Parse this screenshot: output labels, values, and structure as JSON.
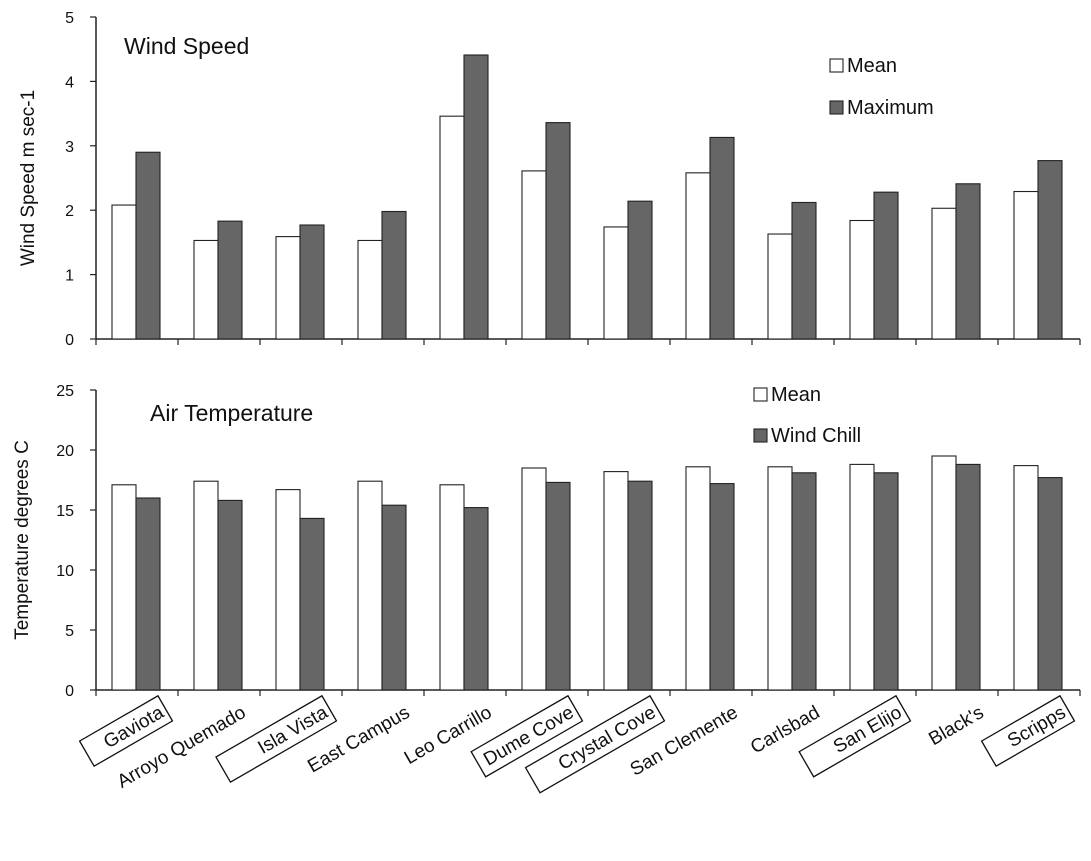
{
  "sites": [
    "Gaviota",
    "Arroyo Quemado",
    "Isla Vista",
    "East Campus",
    "Leo Carrillo",
    "Dume Cove",
    "Crystal Cove",
    "San Clemente",
    "Carlsbad",
    "San Elijo",
    "Black's",
    "Scripps"
  ],
  "boxed_sites": [
    true,
    false,
    true,
    false,
    false,
    true,
    true,
    false,
    false,
    true,
    false,
    true
  ],
  "colors": {
    "mean": "#ffffff",
    "secondary": "#666666",
    "axis": "#222222"
  },
  "chart_data": [
    {
      "type": "bar",
      "title": "Wind Speed",
      "ylabel": "Wind Speed m sec-1",
      "ylim": [
        0,
        5
      ],
      "yticks": [
        0,
        1,
        2,
        3,
        4,
        5
      ],
      "legend_position": "top-right",
      "categories_ref": "sites",
      "series": [
        {
          "name": "Mean",
          "color": "#ffffff",
          "values": [
            2.08,
            1.53,
            1.59,
            1.53,
            3.46,
            2.61,
            1.74,
            2.58,
            1.63,
            1.84,
            2.03,
            2.29
          ]
        },
        {
          "name": "Maximum",
          "color": "#666666",
          "values": [
            2.9,
            1.83,
            1.77,
            1.98,
            4.41,
            3.36,
            2.14,
            3.13,
            2.12,
            2.28,
            2.41,
            2.77
          ]
        }
      ]
    },
    {
      "type": "bar",
      "title": "Air Temperature",
      "ylabel": "Temperature degrees C",
      "ylim": [
        0,
        25
      ],
      "yticks": [
        0,
        5,
        10,
        15,
        20,
        25
      ],
      "legend_position": "top-right",
      "categories_ref": "sites",
      "series": [
        {
          "name": "Mean",
          "color": "#ffffff",
          "values": [
            17.1,
            17.4,
            16.7,
            17.4,
            17.1,
            18.5,
            18.2,
            18.6,
            18.6,
            18.8,
            19.5,
            18.7
          ]
        },
        {
          "name": "Wind Chill",
          "color": "#666666",
          "values": [
            16.0,
            15.8,
            14.3,
            15.4,
            15.2,
            17.3,
            17.4,
            17.2,
            18.1,
            18.1,
            18.8,
            17.7
          ]
        }
      ]
    }
  ]
}
